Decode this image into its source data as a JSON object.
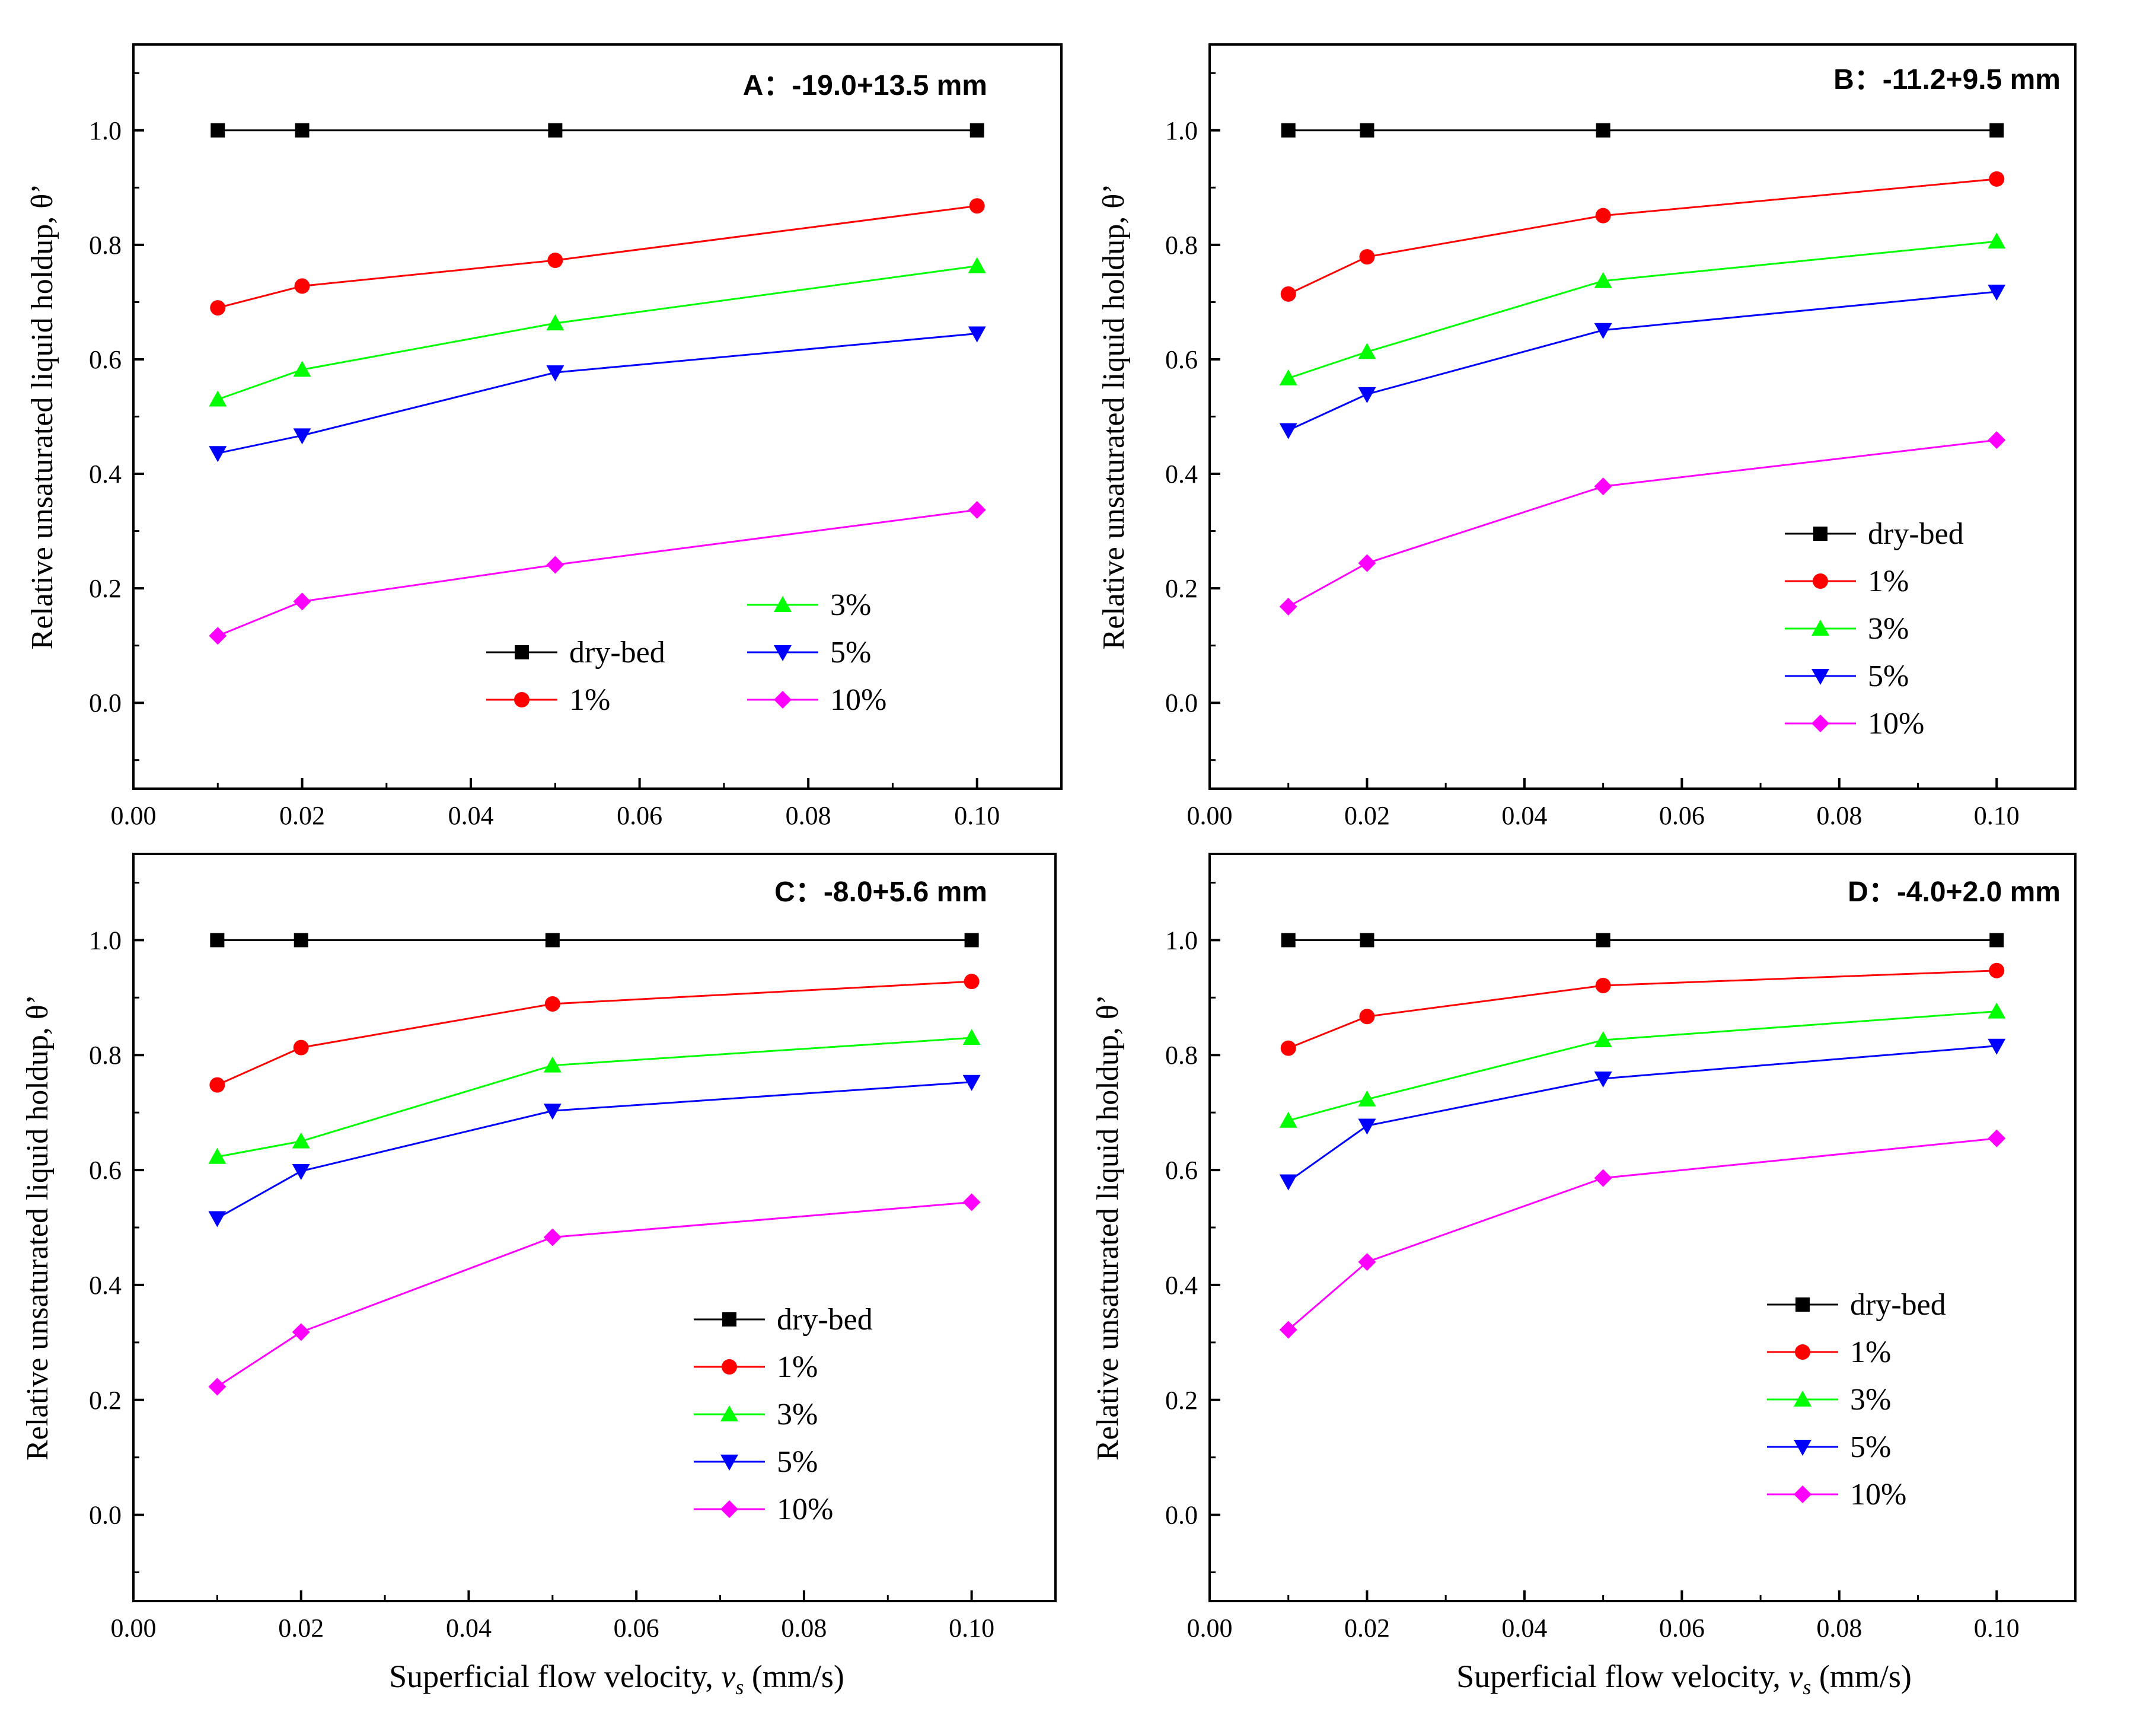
{
  "figure": {
    "shared_xlabel_prefix": "Superficial flow velocity, ",
    "shared_xlabel_var": "v",
    "shared_xlabel_sub": "s",
    "shared_xlabel_suffix": " (mm/s)"
  },
  "colors": {
    "dry-bed": "#000000",
    "1%": "#ff0000",
    "3%": "#00ff00",
    "5%": "#0000ff",
    "10%": "#ff00ff"
  },
  "markers": {
    "dry-bed": "square",
    "1%": "circle",
    "3%": "triangle-up",
    "5%": "triangle-down",
    "10%": "diamond"
  },
  "chart_data": [
    {
      "type": "line",
      "title": "A：-19.0+13.5 mm",
      "xlabel": "",
      "ylabel": "Relative unsaturated liquid holdup, θ’",
      "xlim": [
        0.0,
        0.11
      ],
      "ylim": [
        -0.15,
        1.15
      ],
      "xticks": [
        "0.00",
        "0.02",
        "0.04",
        "0.06",
        "0.08",
        "0.10"
      ],
      "yticks": [
        "0.0",
        "0.2",
        "0.4",
        "0.6",
        "0.8",
        "1.0"
      ],
      "legend": "bottom-right, two columns",
      "x": [
        0.01,
        0.02,
        0.05,
        0.1
      ],
      "series": [
        {
          "name": "dry-bed",
          "values": [
            1.0,
            1.0,
            1.0,
            1.0
          ]
        },
        {
          "name": "1%",
          "values": [
            0.69,
            0.728,
            0.773,
            0.868
          ]
        },
        {
          "name": "3%",
          "values": [
            0.53,
            0.582,
            0.663,
            0.763
          ]
        },
        {
          "name": "5%",
          "values": [
            0.436,
            0.467,
            0.577,
            0.645
          ]
        },
        {
          "name": "10%",
          "values": [
            0.117,
            0.177,
            0.241,
            0.337
          ]
        }
      ]
    },
    {
      "type": "line",
      "title": "B：-11.2+9.5 mm",
      "xlabel": "",
      "ylabel": "Relative unsaturated liquid holdup, θ’",
      "xlim": [
        0.0,
        0.11
      ],
      "ylim": [
        -0.15,
        1.15
      ],
      "xticks": [
        "0.00",
        "0.02",
        "0.04",
        "0.06",
        "0.08",
        "0.10"
      ],
      "yticks": [
        "0.0",
        "0.2",
        "0.4",
        "0.6",
        "0.8",
        "1.0"
      ],
      "legend": "right, single column",
      "x": [
        0.01,
        0.02,
        0.05,
        0.1
      ],
      "series": [
        {
          "name": "dry-bed",
          "values": [
            1.0,
            1.0,
            1.0,
            1.0
          ]
        },
        {
          "name": "1%",
          "values": [
            0.714,
            0.779,
            0.851,
            0.915
          ]
        },
        {
          "name": "3%",
          "values": [
            0.567,
            0.613,
            0.737,
            0.806
          ]
        },
        {
          "name": "5%",
          "values": [
            0.476,
            0.539,
            0.651,
            0.718
          ]
        },
        {
          "name": "10%",
          "values": [
            0.168,
            0.244,
            0.378,
            0.459
          ]
        }
      ]
    },
    {
      "type": "line",
      "title": "C：-8.0+5.6 mm",
      "xlabel": "",
      "ylabel": "Relative unsaturated liquid holdup, θ’",
      "xlim": [
        0.0,
        0.11
      ],
      "ylim": [
        -0.15,
        1.15
      ],
      "xticks": [
        "0.00",
        "0.02",
        "0.04",
        "0.06",
        "0.08",
        "0.10"
      ],
      "yticks": [
        "0.0",
        "0.2",
        "0.4",
        "0.6",
        "0.8",
        "1.0"
      ],
      "legend": "right, single column",
      "x": [
        0.01,
        0.02,
        0.05,
        0.1
      ],
      "series": [
        {
          "name": "dry-bed",
          "values": [
            1.0,
            1.0,
            1.0,
            1.0
          ]
        },
        {
          "name": "1%",
          "values": [
            0.748,
            0.813,
            0.889,
            0.928
          ]
        },
        {
          "name": "3%",
          "values": [
            0.623,
            0.65,
            0.782,
            0.83
          ]
        },
        {
          "name": "5%",
          "values": [
            0.516,
            0.598,
            0.703,
            0.753
          ]
        },
        {
          "name": "10%",
          "values": [
            0.223,
            0.318,
            0.483,
            0.544
          ]
        }
      ]
    },
    {
      "type": "line",
      "title": "D：-4.0+2.0 mm",
      "xlabel": "",
      "ylabel": "Relative unsaturated liquid holdup, θ’",
      "xlim": [
        0.0,
        0.11
      ],
      "ylim": [
        -0.15,
        1.15
      ],
      "xticks": [
        "0.00",
        "0.02",
        "0.04",
        "0.06",
        "0.08",
        "0.10"
      ],
      "yticks": [
        "0.0",
        "0.2",
        "0.4",
        "0.6",
        "0.8",
        "1.0"
      ],
      "legend": "bottom-right, single column",
      "x": [
        0.01,
        0.02,
        0.05,
        0.1
      ],
      "series": [
        {
          "name": "dry-bed",
          "values": [
            1.0,
            1.0,
            1.0,
            1.0
          ]
        },
        {
          "name": "1%",
          "values": [
            0.812,
            0.867,
            0.921,
            0.947
          ]
        },
        {
          "name": "3%",
          "values": [
            0.686,
            0.723,
            0.826,
            0.876
          ]
        },
        {
          "name": "5%",
          "values": [
            0.58,
            0.677,
            0.759,
            0.816
          ]
        },
        {
          "name": "10%",
          "values": [
            0.322,
            0.44,
            0.586,
            0.655
          ]
        }
      ]
    }
  ]
}
